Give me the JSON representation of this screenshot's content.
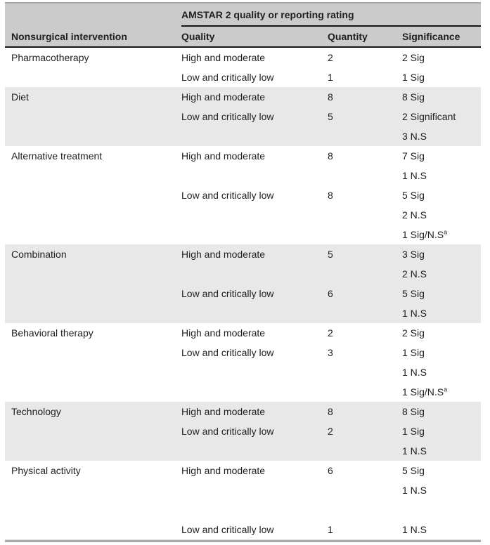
{
  "colors": {
    "header_bg": "#cbcbcb",
    "stripe_bg": "#e8e8e8",
    "rule_black": "#141414",
    "outer_gray": "#a8a8a8",
    "text": "#1f1f1f"
  },
  "table": {
    "span_header": "AMSTAR 2 quality or reporting rating",
    "columns": [
      "Nonsurgical intervention",
      "Quality",
      "Quantity",
      "Significance"
    ],
    "sections": [
      {
        "intervention": "Pharmacotherapy",
        "shaded": false,
        "subrows": [
          {
            "quality": "High and moderate",
            "quantity": "2",
            "significance": [
              "2 Sig"
            ]
          },
          {
            "quality": "Low and critically low",
            "quantity": "1",
            "significance": [
              "1 Sig"
            ]
          }
        ]
      },
      {
        "intervention": "Diet",
        "shaded": true,
        "subrows": [
          {
            "quality": "High and moderate",
            "quantity": "8",
            "significance": [
              "8 Sig"
            ]
          },
          {
            "quality": "Low and critically low",
            "quantity": "5",
            "significance": [
              "2 Significant",
              "3 N.S"
            ]
          }
        ]
      },
      {
        "intervention": "Alternative treatment",
        "shaded": false,
        "subrows": [
          {
            "quality": "High and moderate",
            "quantity": "8",
            "significance": [
              "7 Sig",
              "1 N.S"
            ]
          },
          {
            "quality": "Low and critically low",
            "quantity": "8",
            "significance": [
              "5 Sig",
              "2 N.S",
              "1 Sig/N.S^a"
            ]
          }
        ]
      },
      {
        "intervention": "Combination",
        "shaded": true,
        "subrows": [
          {
            "quality": "High and moderate",
            "quantity": "5",
            "significance": [
              "3 Sig",
              "2 N.S"
            ]
          },
          {
            "quality": "Low and critically low",
            "quantity": "6",
            "significance": [
              "5 Sig",
              "1 N.S"
            ]
          }
        ]
      },
      {
        "intervention": "Behavioral therapy",
        "shaded": false,
        "subrows": [
          {
            "quality": "High and moderate",
            "quantity": "2",
            "significance": [
              "2 Sig"
            ]
          },
          {
            "quality": "Low and critically low",
            "quantity": "3",
            "significance": [
              "1 Sig",
              "1 N.S",
              "1 Sig/N.S^a"
            ]
          }
        ]
      },
      {
        "intervention": "Technology",
        "shaded": true,
        "subrows": [
          {
            "quality": "High and moderate",
            "quantity": "8",
            "significance": [
              "8 Sig"
            ]
          },
          {
            "quality": "Low and critically low",
            "quantity": "2",
            "significance": [
              "1 Sig",
              "1 N.S"
            ]
          }
        ]
      },
      {
        "intervention": "Physical activity",
        "shaded": false,
        "subrows": [
          {
            "quality": "High and moderate",
            "quantity": "6",
            "significance": [
              "5 Sig",
              "1 N.S",
              ""
            ]
          },
          {
            "quality": "Low and critically low",
            "quantity": "1",
            "significance": [
              "1 N.S"
            ]
          }
        ]
      }
    ]
  }
}
